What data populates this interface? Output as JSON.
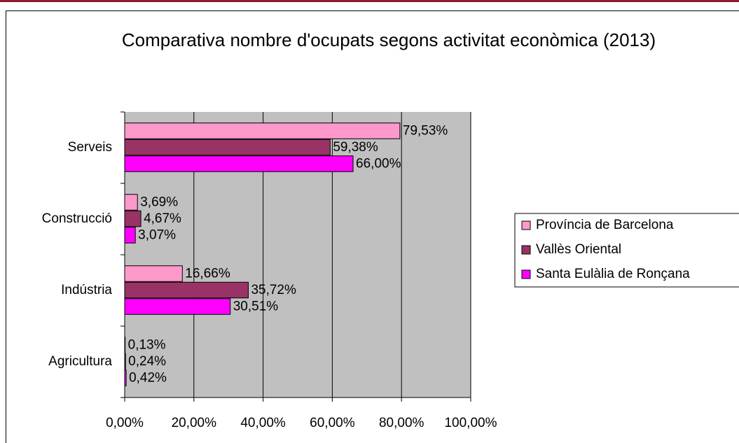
{
  "chart_data": {
    "type": "bar",
    "orientation": "horizontal",
    "title": "Comparativa nombre d'ocupats segons activitat econòmica (2013)",
    "categories": [
      "Serveis",
      "Construcció",
      "Indústria",
      "Agricultura"
    ],
    "series": [
      {
        "name": "Província de Barcelona",
        "color": "#ff99cc",
        "values": [
          79.53,
          3.69,
          16.66,
          0.13
        ],
        "value_labels": [
          "79,53%",
          "3,69%",
          "16,66%",
          "0,13%"
        ]
      },
      {
        "name": "Vallès Oriental",
        "color": "#993366",
        "values": [
          59.38,
          4.67,
          35.72,
          0.24
        ],
        "value_labels": [
          "59,38%",
          "4,67%",
          "35,72%",
          "0,24%"
        ]
      },
      {
        "name": "Santa Eulàlia de Ronçana",
        "color": "#ff00ff",
        "values": [
          66.0,
          3.07,
          30.51,
          0.42
        ],
        "value_labels": [
          "66,00%",
          "3,07%",
          "30,51%",
          "0,42%"
        ]
      }
    ],
    "xlim": [
      0,
      100
    ],
    "xticks": [
      {
        "value": 0,
        "label": "0,00%"
      },
      {
        "value": 20,
        "label": "20,00%"
      },
      {
        "value": 40,
        "label": "40,00%"
      },
      {
        "value": 60,
        "label": "60,00%"
      },
      {
        "value": 80,
        "label": "80,00%"
      },
      {
        "value": 100,
        "label": "100,00%"
      }
    ],
    "grid": true,
    "plot_background": "#c0c0c0",
    "legend": "right"
  }
}
